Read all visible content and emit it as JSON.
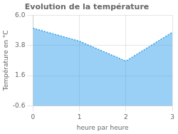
{
  "chart_data": {
    "type": "area",
    "title": "Evolution de la température",
    "x_label": "heure par heure",
    "y_label": "Température en °C",
    "x": [
      0,
      1,
      2,
      3
    ],
    "values": [
      5.05,
      4.1,
      2.65,
      4.75
    ],
    "xlim": [
      0,
      3
    ],
    "xticks": [
      0,
      1,
      2,
      3
    ],
    "ylim": [
      -0.6,
      6.0
    ],
    "yticks": [
      -0.6,
      1.6,
      3.8,
      {
        "value": 6.0,
        "label": "6.0"
      }
    ],
    "line_style": "dotted",
    "grid": true
  }
}
